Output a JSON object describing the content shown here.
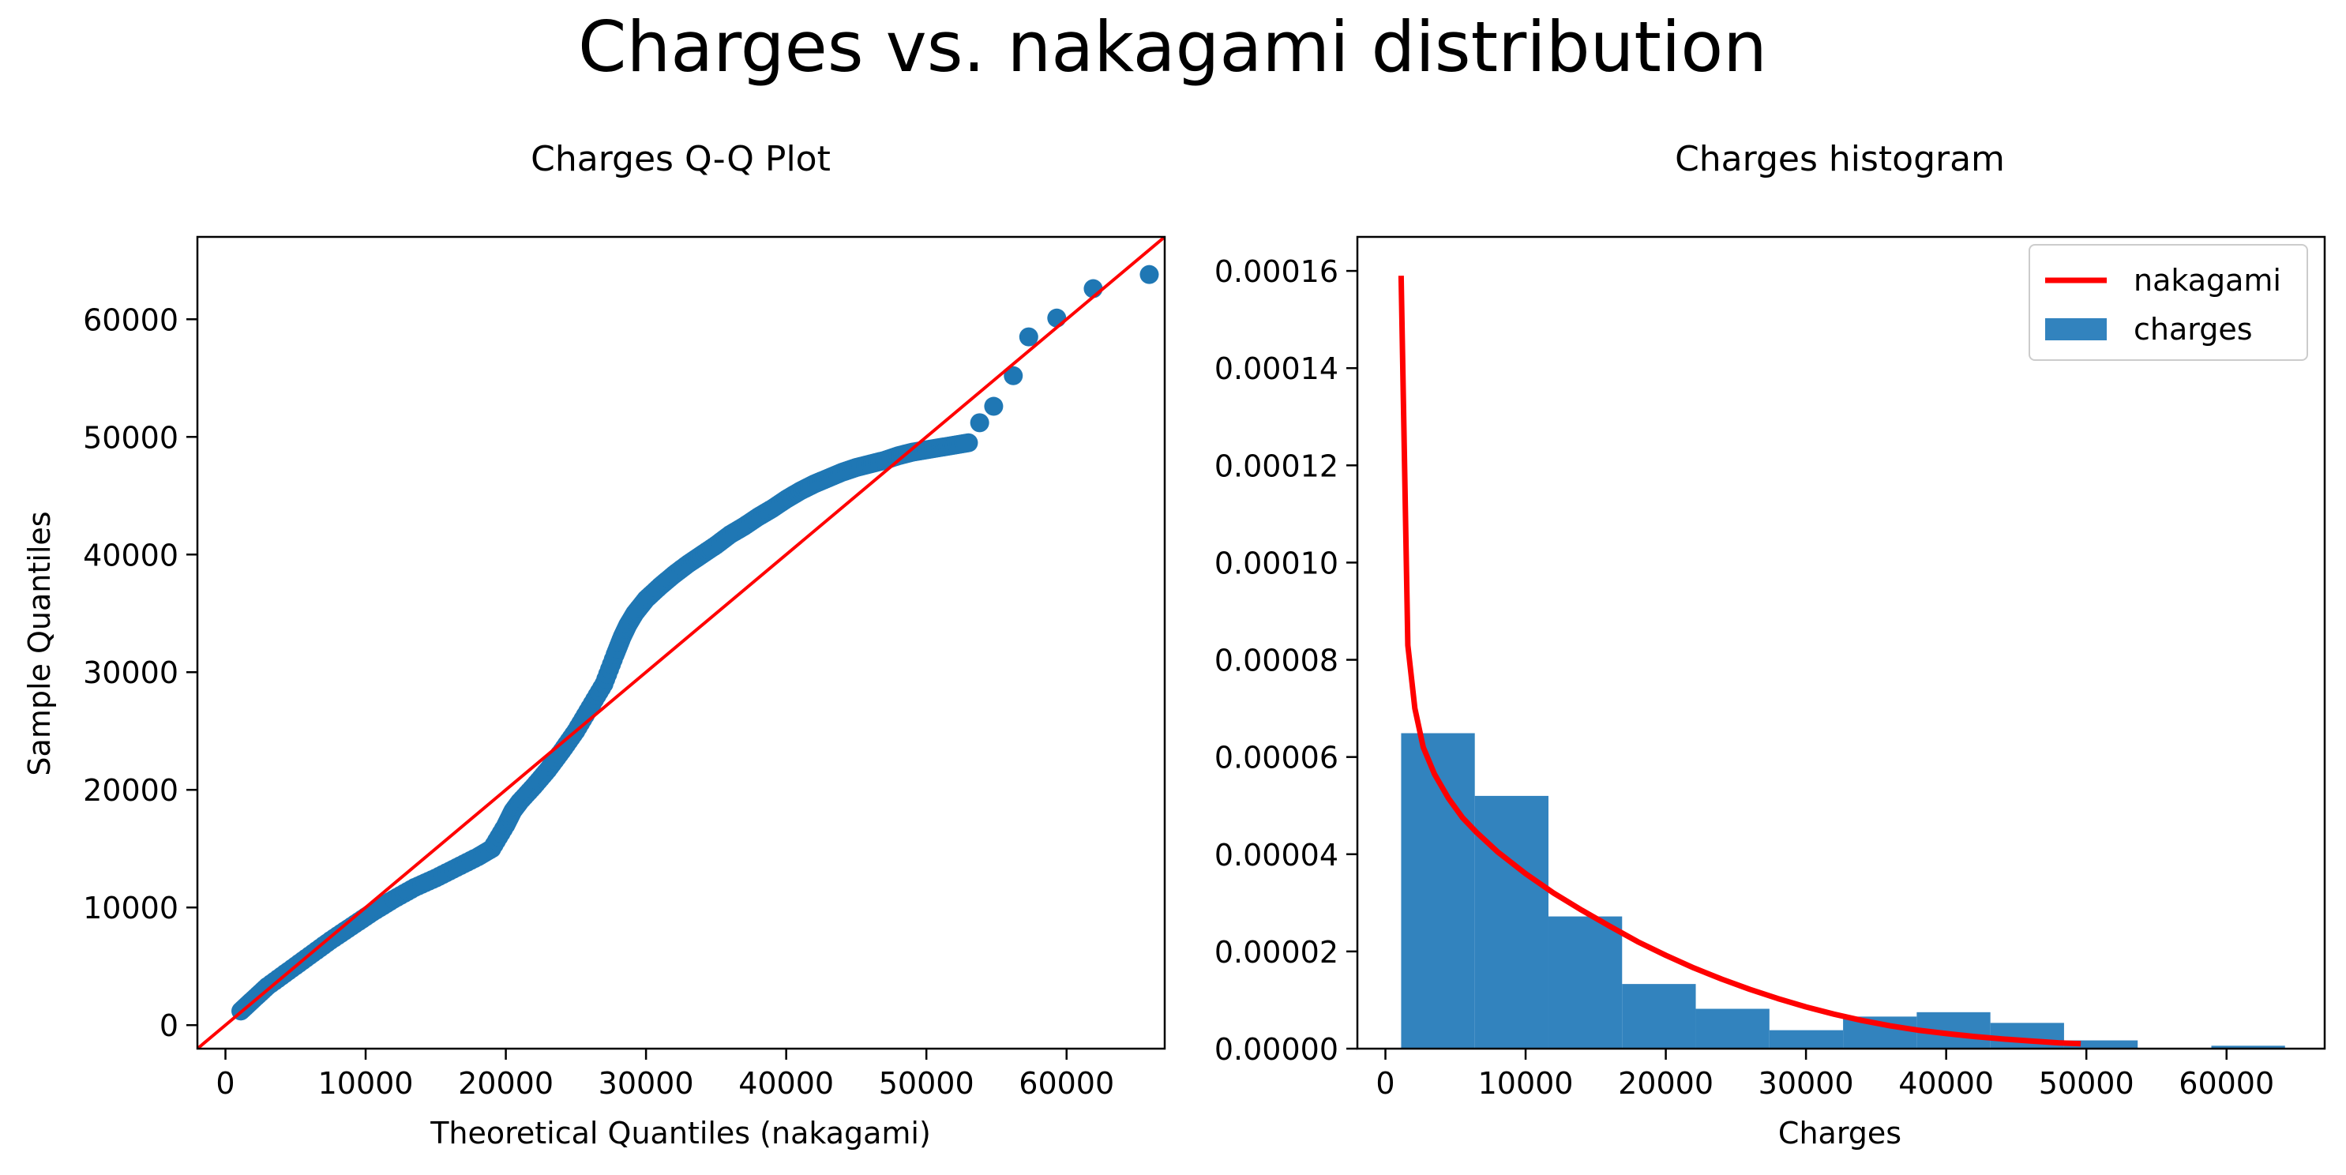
{
  "suptitle": "Charges vs. nakagami distribution",
  "colors": {
    "points": "#1f77b4",
    "bars": "#3283be",
    "fit_line": "#ff0000",
    "axes": "#000000"
  },
  "chart_data": [
    {
      "type": "scatter",
      "title": "Charges Q-Q Plot",
      "xlabel": "Theoretical Quantiles (nakagami)",
      "ylabel": "Sample Quantiles",
      "xlim": [
        -2000,
        67000
      ],
      "ylim": [
        -2000,
        67000
      ],
      "xticks": [
        0,
        10000,
        20000,
        30000,
        40000,
        50000,
        60000
      ],
      "yticks": [
        0,
        10000,
        20000,
        30000,
        40000,
        50000,
        60000
      ],
      "reference_line": {
        "from": [
          -2000,
          -2000
        ],
        "to": [
          67000,
          67000
        ]
      },
      "curve": {
        "x": [
          1100,
          2000,
          3000,
          4500,
          6000,
          7500,
          9000,
          10500,
          12000,
          13500,
          15000,
          16500,
          18000,
          19000,
          20000,
          20500,
          21000,
          22000,
          23000,
          24000,
          25000,
          26000,
          27000,
          27800,
          28300,
          28700,
          29200,
          30000,
          31000,
          32000,
          33000,
          34000,
          35000,
          36000,
          37000,
          38000,
          39000,
          40000,
          41000,
          42000,
          43000,
          44000,
          45000,
          46000,
          47000,
          48000,
          49000,
          50000,
          51000,
          52000,
          53000
        ],
        "y": [
          1200,
          2200,
          3300,
          4600,
          5900,
          7200,
          8400,
          9600,
          10700,
          11700,
          12500,
          13400,
          14300,
          15000,
          17000,
          18200,
          19000,
          20300,
          21700,
          23300,
          25000,
          27000,
          29000,
          31500,
          33000,
          34000,
          35000,
          36200,
          37300,
          38300,
          39200,
          40000,
          40800,
          41700,
          42400,
          43200,
          43900,
          44700,
          45400,
          46000,
          46500,
          47000,
          47400,
          47700,
          48000,
          48400,
          48700,
          48900,
          49100,
          49300,
          49500
        ]
      },
      "outliers": {
        "x": [
          53800,
          54800,
          56200,
          57300,
          59300,
          61900,
          65900
        ],
        "y": [
          51200,
          52600,
          55200,
          58500,
          60100,
          62600,
          63800
        ]
      }
    },
    {
      "type": "bar",
      "title": "Charges histogram",
      "xlabel": "Charges",
      "ylabel": "",
      "xlim": [
        -2000,
        67000
      ],
      "ylim": [
        0,
        0.000167
      ],
      "xticks": [
        0,
        10000,
        20000,
        30000,
        40000,
        50000,
        60000
      ],
      "yticks": [
        "0.00000",
        "0.00002",
        "0.00004",
        "0.00006",
        "0.00008",
        "0.00010",
        "0.00012",
        "0.00014",
        "0.00016"
      ],
      "legend": {
        "position": "top-right",
        "entries": [
          "nakagami",
          "charges"
        ]
      },
      "bin_edges": [
        1122,
        6376,
        11630,
        16884,
        22138,
        27392,
        32646,
        37900,
        43154,
        48408,
        53662,
        58916,
        64170
      ],
      "bin_values": [
        6.49e-05,
        5.2e-05,
        2.72e-05,
        1.33e-05,
        8.2e-06,
        3.8e-06,
        6.6e-06,
        7.5e-06,
        5.3e-06,
        1.7e-06,
        0.0,
        6e-07
      ],
      "series": [
        {
          "name": "nakagami",
          "x": [
            1122,
            1600,
            2100,
            2700,
            3500,
            4500,
            5500,
            6500,
            8000,
            10000,
            12000,
            14000,
            16000,
            18000,
            20000,
            22000,
            24000,
            26000,
            28000,
            30000,
            32000,
            34000,
            36000,
            38000,
            40000,
            42000,
            44000,
            46000,
            48000,
            49600
          ],
          "y": [
            0.000159,
            8.3e-05,
            7e-05,
            6.2e-05,
            5.65e-05,
            5.15e-05,
            4.75e-05,
            4.45e-05,
            4.05e-05,
            3.6e-05,
            3.2e-05,
            2.85e-05,
            2.52e-05,
            2.2e-05,
            1.92e-05,
            1.66e-05,
            1.43e-05,
            1.22e-05,
            1.03e-05,
            8.6e-06,
            7.1e-06,
            5.8e-06,
            4.7e-06,
            3.8e-06,
            3.1e-06,
            2.5e-06,
            2e-06,
            1.6e-06,
            1.2e-06,
            1e-06
          ]
        }
      ]
    }
  ]
}
